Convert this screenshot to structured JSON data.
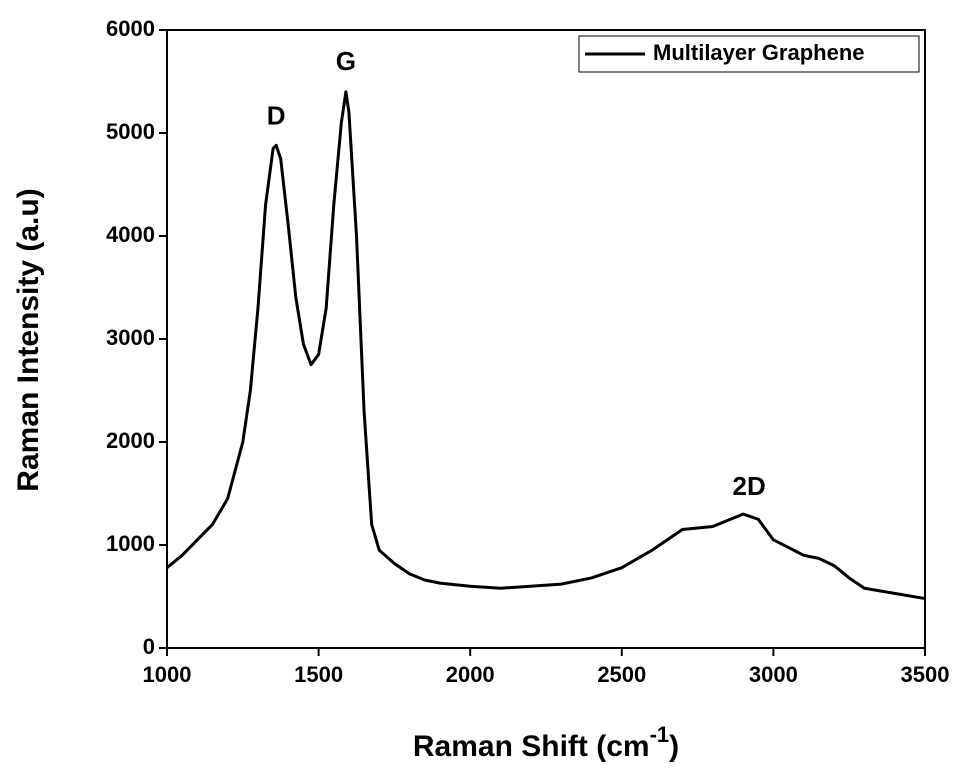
{
  "chart_data": {
    "type": "line",
    "x_label": [
      "Raman Shift (cm",
      "-1",
      ")"
    ],
    "y_label": "Raman Intensity (a.u)",
    "x": [
      1000,
      1050,
      1100,
      1150,
      1200,
      1250,
      1275,
      1300,
      1325,
      1350,
      1360,
      1375,
      1400,
      1425,
      1450,
      1475,
      1500,
      1525,
      1550,
      1575,
      1590,
      1600,
      1625,
      1650,
      1675,
      1700,
      1750,
      1800,
      1850,
      1900,
      2000,
      2100,
      2200,
      2300,
      2400,
      2500,
      2600,
      2700,
      2800,
      2900,
      2950,
      3000,
      3100,
      3150,
      3200,
      3250,
      3300,
      3400,
      3500
    ],
    "series": [
      {
        "name": "Multilayer Graphene",
        "color": "#000000",
        "values": [
          780,
          900,
          1050,
          1200,
          1450,
          2000,
          2500,
          3300,
          4300,
          4850,
          4880,
          4750,
          4100,
          3400,
          2950,
          2750,
          2850,
          3300,
          4300,
          5100,
          5400,
          5200,
          4000,
          2300,
          1200,
          950,
          820,
          720,
          660,
          630,
          600,
          580,
          600,
          620,
          680,
          780,
          950,
          1150,
          1180,
          1300,
          1250,
          1050,
          900,
          870,
          800,
          680,
          580,
          530,
          480
        ]
      }
    ],
    "annotations": [
      {
        "text": "D",
        "x": 1360,
        "y": 5150
      },
      {
        "text": "G",
        "x": 1590,
        "y": 5680
      },
      {
        "text": "2D",
        "x": 2920,
        "y": 1550
      }
    ],
    "xlim": [
      1000,
      3500
    ],
    "xticks": [
      1000,
      1500,
      2000,
      2500,
      3000,
      3500
    ],
    "ylim": [
      0,
      6000
    ],
    "yticks": [
      0,
      1000,
      2000,
      3000,
      4000,
      5000,
      6000
    ],
    "legend": "upper right"
  }
}
